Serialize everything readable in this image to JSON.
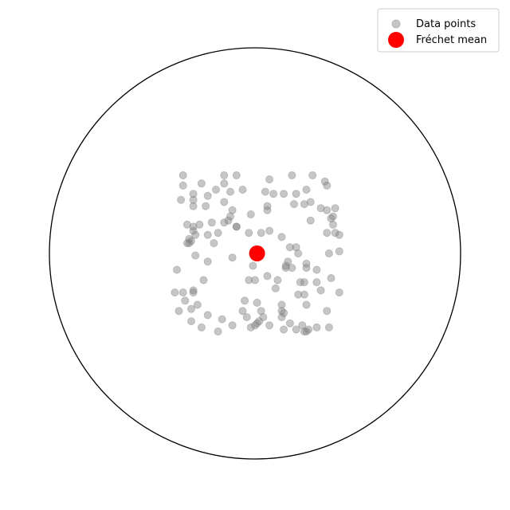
{
  "chart_data": {
    "type": "scatter",
    "title": "",
    "xlabel": "",
    "ylabel": "",
    "domain": "unit-disk",
    "xlim": [
      -1,
      1
    ],
    "ylim": [
      -1,
      1
    ],
    "grid": false,
    "axes_visible": false,
    "legend_placement": "top-right",
    "series": [
      {
        "name": "Data points",
        "marker": "circle",
        "color": "#808080",
        "alpha": 0.45,
        "points": [
          [
            -0.35,
            0.38
          ],
          [
            -0.26,
            0.34
          ],
          [
            -0.15,
            0.38
          ],
          [
            -0.09,
            0.38
          ],
          [
            0.07,
            0.36
          ],
          [
            0.18,
            0.38
          ],
          [
            0.28,
            0.38
          ],
          [
            -0.35,
            0.33
          ],
          [
            -0.3,
            0.29
          ],
          [
            -0.23,
            0.28
          ],
          [
            -0.19,
            0.31
          ],
          [
            -0.15,
            0.34
          ],
          [
            -0.12,
            0.3
          ],
          [
            -0.06,
            0.31
          ],
          [
            0.05,
            0.3
          ],
          [
            0.09,
            0.29
          ],
          [
            0.14,
            0.29
          ],
          [
            0.2,
            0.29
          ],
          [
            0.25,
            0.31
          ],
          [
            0.34,
            0.35
          ],
          [
            0.35,
            0.33
          ],
          [
            -0.36,
            0.26
          ],
          [
            -0.3,
            0.26
          ],
          [
            -0.3,
            0.23
          ],
          [
            -0.24,
            0.23
          ],
          [
            -0.15,
            0.25
          ],
          [
            -0.11,
            0.21
          ],
          [
            0.06,
            0.21
          ],
          [
            0.06,
            0.23
          ],
          [
            0.19,
            0.24
          ],
          [
            0.24,
            0.24
          ],
          [
            0.27,
            0.25
          ],
          [
            0.32,
            0.22
          ],
          [
            0.35,
            0.21
          ],
          [
            0.39,
            0.22
          ],
          [
            -0.12,
            0.18
          ],
          [
            -0.02,
            0.19
          ],
          [
            0.38,
            0.18
          ],
          [
            0.37,
            0.17
          ],
          [
            -0.33,
            0.14
          ],
          [
            -0.27,
            0.14
          ],
          [
            -0.21,
            0.15
          ],
          [
            -0.15,
            0.15
          ],
          [
            -0.13,
            0.16
          ],
          [
            -0.09,
            0.13
          ],
          [
            -0.09,
            0.13
          ],
          [
            0.27,
            0.16
          ],
          [
            0.38,
            0.14
          ],
          [
            -0.3,
            0.13
          ],
          [
            -0.3,
            0.11
          ],
          [
            -0.29,
            0.09
          ],
          [
            -0.23,
            0.09
          ],
          [
            -0.18,
            0.1
          ],
          [
            -0.03,
            0.1
          ],
          [
            0.03,
            0.1
          ],
          [
            0.07,
            0.11
          ],
          [
            0.13,
            0.08
          ],
          [
            0.35,
            0.1
          ],
          [
            0.39,
            0.1
          ],
          [
            0.41,
            0.09
          ],
          [
            -0.32,
            0.07
          ],
          [
            -0.31,
            0.06
          ],
          [
            -0.33,
            0.05
          ],
          [
            -0.32,
            0.05
          ],
          [
            -0.2,
            0.05
          ],
          [
            0.17,
            0.03
          ],
          [
            0.2,
            0.03
          ],
          [
            0.21,
            0.0
          ],
          [
            0.36,
            -0.0
          ],
          [
            0.41,
            0.01
          ],
          [
            -0.29,
            -0.01
          ],
          [
            -0.23,
            -0.04
          ],
          [
            -0.11,
            -0.02
          ],
          [
            0.16,
            -0.04
          ],
          [
            0.25,
            -0.05
          ],
          [
            0.18,
            -0.07
          ],
          [
            0.25,
            -0.07
          ],
          [
            -0.01,
            -0.06
          ],
          [
            0.15,
            -0.06
          ],
          [
            0.15,
            -0.07
          ],
          [
            0.06,
            -0.11
          ],
          [
            0.3,
            -0.08
          ],
          [
            -0.38,
            -0.08
          ],
          [
            -0.25,
            -0.13
          ],
          [
            -0.03,
            -0.13
          ],
          [
            0.0,
            -0.13
          ],
          [
            0.11,
            -0.13
          ],
          [
            0.22,
            -0.14
          ],
          [
            0.24,
            -0.14
          ],
          [
            0.3,
            -0.14
          ],
          [
            0.37,
            -0.12
          ],
          [
            -0.39,
            -0.19
          ],
          [
            -0.35,
            -0.19
          ],
          [
            -0.3,
            -0.18
          ],
          [
            -0.3,
            -0.19
          ],
          [
            0.1,
            -0.17
          ],
          [
            0.21,
            -0.2
          ],
          [
            0.24,
            -0.2
          ],
          [
            0.32,
            -0.18
          ],
          [
            0.41,
            -0.19
          ],
          [
            -0.34,
            -0.23
          ],
          [
            -0.28,
            -0.25
          ],
          [
            -0.05,
            -0.23
          ],
          [
            0.01,
            -0.24
          ],
          [
            0.13,
            -0.25
          ],
          [
            0.25,
            -0.25
          ],
          [
            -0.37,
            -0.28
          ],
          [
            -0.31,
            -0.27
          ],
          [
            -0.23,
            -0.3
          ],
          [
            -0.06,
            -0.28
          ],
          [
            -0.04,
            -0.31
          ],
          [
            0.03,
            -0.28
          ],
          [
            0.13,
            -0.28
          ],
          [
            0.14,
            -0.29
          ],
          [
            0.35,
            -0.28
          ],
          [
            -0.31,
            -0.33
          ],
          [
            -0.26,
            -0.36
          ],
          [
            -0.16,
            -0.32
          ],
          [
            -0.11,
            -0.35
          ],
          [
            0.0,
            -0.35
          ],
          [
            0.01,
            -0.34
          ],
          [
            0.02,
            -0.33
          ],
          [
            0.04,
            -0.31
          ],
          [
            0.07,
            -0.35
          ],
          [
            0.13,
            -0.31
          ],
          [
            0.17,
            -0.34
          ],
          [
            0.23,
            -0.35
          ],
          [
            -0.18,
            -0.38
          ],
          [
            -0.02,
            -0.36
          ],
          [
            0.14,
            -0.37
          ],
          [
            0.2,
            -0.37
          ],
          [
            0.24,
            -0.38
          ],
          [
            0.26,
            -0.37
          ],
          [
            0.3,
            -0.36
          ],
          [
            0.36,
            -0.36
          ],
          [
            0.25,
            -0.38
          ]
        ]
      },
      {
        "name": "Fréchet mean",
        "marker": "circle",
        "color": "#ff0000",
        "alpha": 1,
        "points": [
          [
            0.01,
            -0.0
          ]
        ]
      }
    ],
    "boundary": {
      "shape": "unit-circle",
      "color": "#000000"
    }
  }
}
